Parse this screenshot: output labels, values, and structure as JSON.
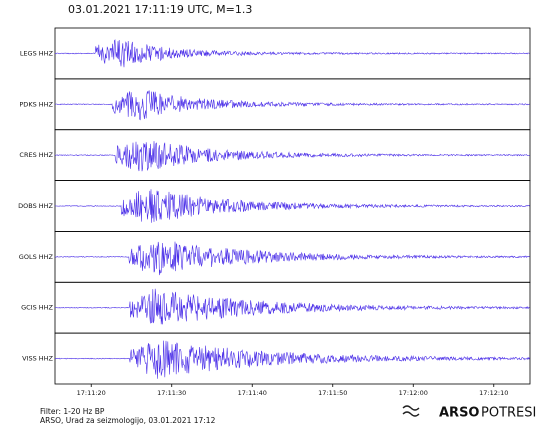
{
  "chart_data": {
    "type": "seismogram",
    "title": "03.01.2021  17:11:19 UTC, M=1.3",
    "color": "#4a2ee8",
    "xlim": [
      61875.5,
      61934.5
    ],
    "xticks": [
      {
        "value": 61880,
        "label": "17:11:20"
      },
      {
        "value": 61890,
        "label": "17:11:30"
      },
      {
        "value": 61900,
        "label": "17:11:40"
      },
      {
        "value": 61910,
        "label": "17:11:50"
      },
      {
        "value": 61920,
        "label": "17:12:00"
      },
      {
        "value": 61930,
        "label": "17:12:10"
      }
    ],
    "series": [
      {
        "name": "LEGS HHZ",
        "onset": 61880.5
      },
      {
        "name": "PDKS HHZ",
        "onset": 61882.6
      },
      {
        "name": "CRES HHZ",
        "onset": 61883.0
      },
      {
        "name": "DOBS HHZ",
        "onset": 61883.7
      },
      {
        "name": "GOLS HHZ",
        "onset": 61884.6
      },
      {
        "name": "GCIS HHZ",
        "onset": 61884.8
      },
      {
        "name": "VISS HHZ",
        "onset": 61884.8
      }
    ],
    "footer": {
      "filter": "Filter: 1-20 Hz BP",
      "source": "ARSO, Urad za seizmologijo, 03.01.2021  17:12"
    },
    "logo": {
      "bold": "ARSO",
      "light": "POTRESI"
    }
  }
}
